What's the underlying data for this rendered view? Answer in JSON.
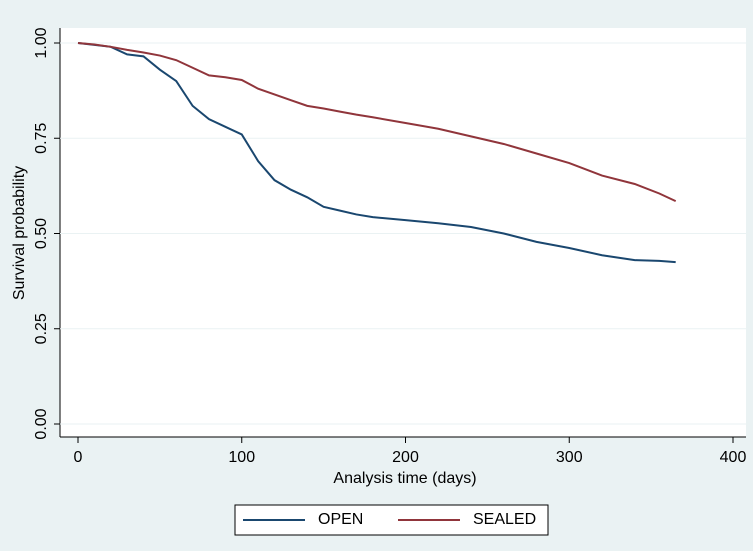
{
  "chart_data": {
    "type": "line",
    "xlabel": "Analysis time (days)",
    "ylabel": "Survival probability",
    "x": [
      0,
      10,
      20,
      30,
      40,
      50,
      60,
      70,
      80,
      90,
      100,
      110,
      120,
      130,
      140,
      150,
      160,
      170,
      180,
      200,
      220,
      240,
      260,
      280,
      300,
      320,
      340,
      355,
      365
    ],
    "series": [
      {
        "name": "OPEN",
        "color": "#1a476f",
        "values": [
          1,
          0.995,
          0.99,
          0.97,
          0.965,
          0.93,
          0.9,
          0.835,
          0.8,
          0.78,
          0.76,
          0.69,
          0.64,
          0.615,
          0.595,
          0.57,
          0.56,
          0.55,
          0.543,
          0.535,
          0.527,
          0.517,
          0.5,
          0.478,
          0.462,
          0.443,
          0.43,
          0.428,
          0.425
        ]
      },
      {
        "name": "SEALED",
        "color": "#90353b",
        "values": [
          1,
          0.996,
          0.99,
          0.982,
          0.975,
          0.967,
          0.955,
          0.935,
          0.915,
          0.91,
          0.903,
          0.88,
          0.865,
          0.85,
          0.835,
          0.828,
          0.82,
          0.812,
          0.805,
          0.79,
          0.775,
          0.755,
          0.735,
          0.71,
          0.685,
          0.652,
          0.63,
          0.605,
          0.585
        ]
      }
    ],
    "xlim": [
      0,
      400
    ],
    "xticks": [
      0,
      100,
      200,
      300,
      400
    ],
    "ylim": [
      0,
      1
    ],
    "yticks": [
      {
        "value": 0,
        "label": "0.00"
      },
      0.25,
      {
        "value": 0.5,
        "label": "0.50"
      },
      0.75,
      {
        "value": 1,
        "label": "1.00"
      }
    ],
    "grid": true,
    "legend": "bottom"
  }
}
